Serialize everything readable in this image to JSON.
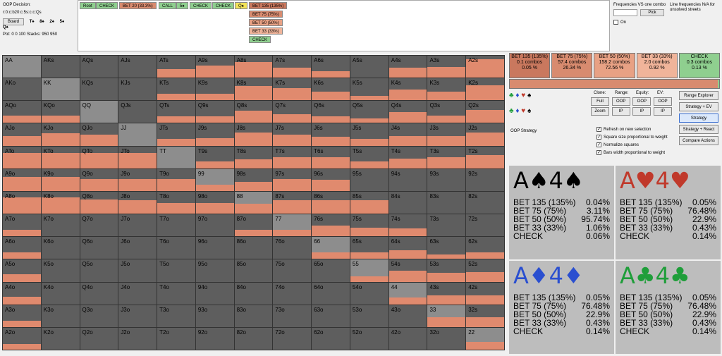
{
  "info": {
    "decision_label": "OOP Decision:",
    "path": "r:0:c:b20:c:5s:c:c:Qs",
    "board_button": "Board",
    "board_cards": [
      "T♠",
      "8♠",
      "2♠",
      "5♠",
      "Q♠"
    ],
    "pot_stacks": "Pot: 0 0 100 Stacks: 950 950"
  },
  "tree": {
    "nodes": [
      "Root",
      "CHECK",
      "BET 20 (33.3%)",
      "CALL",
      "5♠",
      "CHECK",
      "CHECK",
      "Q♠"
    ],
    "options": [
      "BET 135 (135%)",
      "BET 75 (75%)",
      "BET 50 (50%)",
      "BET 33 (33%)",
      "CHECK"
    ]
  },
  "right_controls": {
    "freq_label": "Frequencies VS one combo",
    "line_label": "Line frequencies N/A for unsolved streets",
    "pick_button": "Pick",
    "on_label": "On"
  },
  "summary": [
    {
      "label": "BET 135 (135%)",
      "combos": "0.1 combos",
      "pct": "0.05 %",
      "color": "#c9785e"
    },
    {
      "label": "BET 75 (75%)",
      "combos": "57.4 combos",
      "pct": "26.34 %",
      "color": "#d88b6f"
    },
    {
      "label": "BET 50 (50%)",
      "combos": "158.2 combos",
      "pct": "72.56 %",
      "color": "#e8a184"
    },
    {
      "label": "BET 33 (33%)",
      "combos": "2.0 combos",
      "pct": "0.92 %",
      "color": "#f0b49a"
    },
    {
      "label": "CHECK",
      "combos": "0.3 combos",
      "pct": "0.13 %",
      "color": "#8fcf8f"
    }
  ],
  "controls": {
    "headers": [
      "Clone:",
      "Range:",
      "Equity:",
      "EV:"
    ],
    "full": "Full",
    "zoom": "Zoom",
    "oop": "OOP",
    "ip": "IP",
    "range_explorer": "Range Explorer",
    "strategy_ev": "Strategy + EV",
    "strategy": "Strategy",
    "strategy_react": "Strategy + React",
    "compare": "Compare Actions",
    "oop_strategy": "OOP Strategy",
    "checks": [
      "Refresh on new selection",
      "Square size proportional to weight",
      "Normalize squares",
      "Bars width proportional to weight"
    ]
  },
  "combos": [
    {
      "title_rank1": "A",
      "suit": "♠",
      "title_rank2": "4",
      "color": "#000000",
      "rows": [
        [
          "BET 135 (135%)",
          "0.04%"
        ],
        [
          "BET 75 (75%)",
          "3.11%"
        ],
        [
          "BET 50 (50%)",
          "95.74%"
        ],
        [
          "BET 33 (33%)",
          "1.06%"
        ],
        [
          "CHECK",
          "0.06%"
        ]
      ]
    },
    {
      "title_rank1": "A",
      "suit": "♥",
      "title_rank2": "4",
      "color": "#c0392b",
      "rows": [
        [
          "BET 135 (135%)",
          "0.05%"
        ],
        [
          "BET 75 (75%)",
          "76.48%"
        ],
        [
          "BET 50 (50%)",
          "22.9%"
        ],
        [
          "BET 33 (33%)",
          "0.43%"
        ],
        [
          "CHECK",
          "0.14%"
        ]
      ]
    },
    {
      "title_rank1": "A",
      "suit": "♦",
      "title_rank2": "4",
      "color": "#2a4fd0",
      "rows": [
        [
          "BET 135 (135%)",
          "0.05%"
        ],
        [
          "BET 75 (75%)",
          "76.48%"
        ],
        [
          "BET 50 (50%)",
          "22.9%"
        ],
        [
          "BET 33 (33%)",
          "0.43%"
        ],
        [
          "CHECK",
          "0.14%"
        ]
      ]
    },
    {
      "title_rank1": "A",
      "suit": "♣",
      "title_rank2": "4",
      "color": "#1f9e3a",
      "rows": [
        [
          "BET 135 (135%)",
          "0.05%"
        ],
        [
          "BET 75 (75%)",
          "76.48%"
        ],
        [
          "BET 50 (50%)",
          "22.9%"
        ],
        [
          "BET 33 (33%)",
          "0.43%"
        ],
        [
          "CHECK",
          "0.14%"
        ]
      ]
    }
  ],
  "grid": {
    "ranks": [
      "A",
      "K",
      "Q",
      "J",
      "T",
      "9",
      "8",
      "7",
      "6",
      "5",
      "4",
      "3",
      "2"
    ],
    "fills": [
      [
        0,
        0,
        0,
        0,
        0.4,
        0.55,
        0.7,
        0.45,
        0.3,
        0,
        0.45,
        0.5,
        0.85
      ],
      [
        0,
        0,
        0,
        0,
        0.3,
        0.3,
        0.65,
        0.55,
        0.4,
        0.2,
        0.5,
        0.4,
        0.7
      ],
      [
        0.35,
        0.35,
        0,
        0,
        0.3,
        0.3,
        0.55,
        0.4,
        0.3,
        0.2,
        0.5,
        0.35,
        0.6
      ],
      [
        0.45,
        0.55,
        0.5,
        0,
        0.3,
        0.35,
        0.6,
        0.5,
        0.4,
        0.3,
        0.45,
        0.45,
        0.6
      ],
      [
        0.7,
        0.7,
        0.7,
        0.7,
        0,
        0.3,
        0.4,
        0.5,
        0.5,
        0.3,
        0.45,
        0.5,
        0.6
      ],
      [
        0.65,
        0.65,
        0.55,
        0.55,
        0.55,
        0.3,
        0.4,
        0.55,
        0.5,
        0,
        0,
        0,
        0
      ],
      [
        0.75,
        0.75,
        0.65,
        0.6,
        0.5,
        0.5,
        0.45,
        0.6,
        0.6,
        0.6,
        0,
        0,
        0
      ],
      [
        0.3,
        0,
        0,
        0,
        0,
        0,
        0.3,
        0.3,
        0.5,
        0.4,
        0.35,
        0,
        0
      ],
      [
        0.3,
        0,
        0,
        0,
        0,
        0,
        0,
        0,
        0.3,
        0.3,
        0.4,
        0.2,
        0.3
      ],
      [
        0.35,
        0,
        0,
        0,
        0,
        0,
        0,
        0,
        0,
        0.25,
        0.5,
        0.4,
        0.45
      ],
      [
        0.35,
        0,
        0,
        0,
        0,
        0,
        0,
        0,
        0,
        0,
        0.3,
        0.4,
        0.4
      ],
      [
        0.3,
        0,
        0,
        0,
        0,
        0,
        0,
        0,
        0,
        0,
        0,
        0.45,
        0.45
      ],
      [
        0.25,
        0,
        0,
        0,
        0,
        0,
        0,
        0,
        0,
        0,
        0,
        0,
        0.35
      ]
    ]
  }
}
